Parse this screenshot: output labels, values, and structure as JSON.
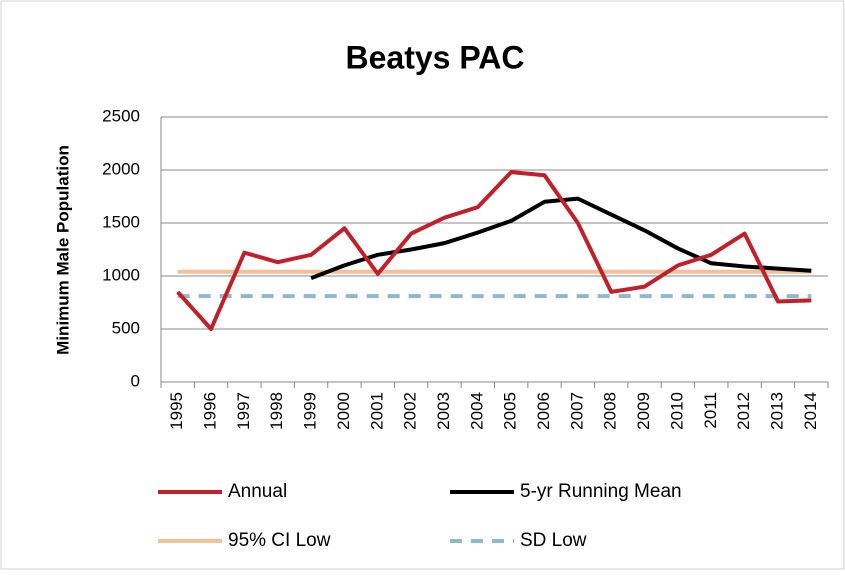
{
  "chart_data": {
    "type": "line",
    "title": "Beatys PAC",
    "y_label": "Minimum Male Population",
    "categories": [
      "1995",
      "1996",
      "1997",
      "1998",
      "1999",
      "2000",
      "2001",
      "2002",
      "2003",
      "2004",
      "2005",
      "2006",
      "2007",
      "2008",
      "2009",
      "2010",
      "2011",
      "2012",
      "2013",
      "2014"
    ],
    "series": [
      {
        "name": "Annual",
        "color": "#c0202a",
        "dash": false,
        "values": [
          850,
          500,
          1220,
          1130,
          1200,
          1450,
          1020,
          1400,
          1550,
          1650,
          1980,
          1950,
          1500,
          850,
          900,
          1100,
          1200,
          1400,
          760,
          770
        ]
      },
      {
        "name": "5-yr Running Mean",
        "color": "#000000",
        "dash": false,
        "values": [
          null,
          null,
          null,
          null,
          980,
          1100,
          1200,
          1250,
          1310,
          1410,
          1520,
          1700,
          1730,
          1580,
          1430,
          1260,
          1120,
          1090,
          1070,
          1050
        ]
      },
      {
        "name": "95% CI Low",
        "color": "#f5bf98",
        "dash": false,
        "values": [
          1040,
          1040,
          1040,
          1040,
          1040,
          1040,
          1040,
          1040,
          1040,
          1040,
          1040,
          1040,
          1040,
          1040,
          1040,
          1040,
          1040,
          1040,
          1040,
          1040
        ]
      },
      {
        "name": "SD Low",
        "color": "#8fb8cc",
        "dash": true,
        "values": [
          810,
          810,
          810,
          810,
          810,
          810,
          810,
          810,
          810,
          810,
          810,
          810,
          810,
          810,
          810,
          810,
          810,
          810,
          810,
          810
        ]
      }
    ],
    "ylim": [
      0,
      2500
    ],
    "yticks": [
      0,
      500,
      1000,
      1500,
      2000,
      2500
    ],
    "grid": true,
    "legend": "bottom"
  }
}
